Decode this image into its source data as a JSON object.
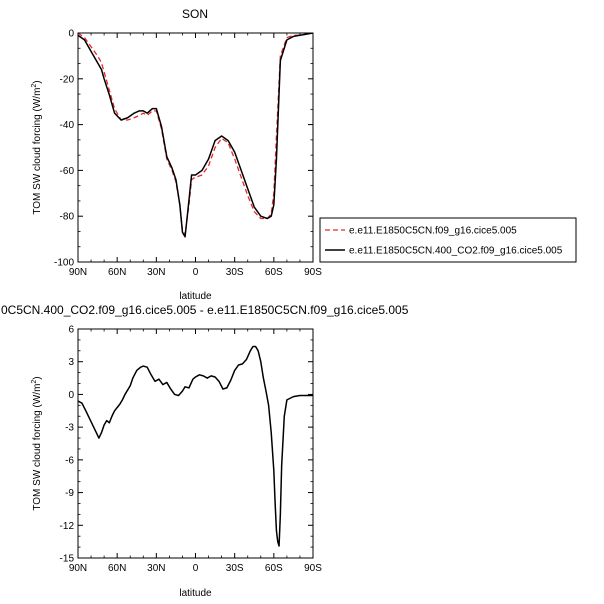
{
  "chart_data": [
    {
      "type": "line",
      "title": "SON",
      "xlabel": "latitude",
      "ylabel": "TOM SW cloud forcing (W/m",
      "ylabel_sup": "2",
      "ylabel_close": ")",
      "xlim": [
        90,
        -90
      ],
      "ylim": [
        -100,
        0
      ],
      "xticks": [
        90,
        60,
        30,
        0,
        -30,
        -60,
        -90
      ],
      "xtick_labels": [
        "90N",
        "60N",
        "30N",
        "0",
        "30S",
        "60S",
        "90S"
      ],
      "yticks": [
        -100,
        -80,
        -60,
        -40,
        -20,
        0
      ],
      "ytick_labels": [
        "-100",
        "-80",
        "-60",
        "-40",
        "-20",
        "0"
      ],
      "legend_position": "right",
      "series": [
        {
          "name": "e.e11.E1850C5CN.f09_g16.cice5.005",
          "color": "#e8262b",
          "dash": "dashed",
          "x": [
            90,
            85,
            80,
            75,
            72,
            70,
            66,
            62,
            57,
            52,
            47,
            43,
            40,
            37,
            33,
            30,
            26,
            22,
            18,
            15,
            12,
            10,
            8,
            5,
            3,
            0,
            -5,
            -10,
            -15,
            -20,
            -25,
            -30,
            -35,
            -40,
            -45,
            -50,
            -55,
            -58,
            -60,
            -62,
            -65,
            -70,
            -75,
            -80,
            -85,
            -90
          ],
          "y": [
            0,
            -2,
            -6,
            -10,
            -13,
            -17,
            -25,
            -33,
            -38,
            -38,
            -37,
            -36,
            -35,
            -36,
            -34,
            -34,
            -42,
            -55,
            -60,
            -65,
            -75,
            -86,
            -88,
            -75,
            -64,
            -63,
            -62,
            -58,
            -50,
            -46,
            -48,
            -55,
            -63,
            -71,
            -78,
            -81,
            -81,
            -79,
            -70,
            -45,
            -10,
            -2,
            -1,
            -1,
            -0.5,
            0
          ]
        },
        {
          "name": "e.e11.E1850C5CN.400_CO2.f09_g16.cice5.005",
          "color": "#000000",
          "dash": "solid",
          "x": [
            90,
            85,
            80,
            75,
            72,
            70,
            66,
            62,
            57,
            52,
            47,
            43,
            40,
            37,
            33,
            30,
            26,
            22,
            18,
            15,
            12,
            10,
            8,
            5,
            3,
            0,
            -5,
            -10,
            -15,
            -20,
            -25,
            -30,
            -35,
            -40,
            -45,
            -50,
            -55,
            -58,
            -60,
            -62,
            -65,
            -70,
            -75,
            -80,
            -85,
            -90
          ],
          "y": [
            -1,
            -3,
            -8,
            -13,
            -16,
            -20,
            -27,
            -35,
            -38,
            -37,
            -35,
            -34,
            -34,
            -35,
            -33,
            -33,
            -41,
            -54,
            -59,
            -64,
            -75,
            -87,
            -89,
            -73,
            -62,
            -62,
            -60,
            -55,
            -47,
            -45,
            -47,
            -52,
            -60,
            -68,
            -76,
            -80,
            -81,
            -80,
            -75,
            -55,
            -12,
            -3,
            -1.5,
            -1,
            -0.5,
            0
          ]
        }
      ]
    },
    {
      "type": "line",
      "title": "0C5CN.400_CO2.f09_g16.cice5.005 - e.e11.E1850C5CN.f09_g16.cice5.005",
      "xlabel": "latitude",
      "ylabel": "TOM SW cloud forcing (W/m",
      "ylabel_sup": "2",
      "ylabel_close": ")",
      "xlim": [
        90,
        -90
      ],
      "ylim": [
        -15,
        6
      ],
      "xticks": [
        90,
        60,
        30,
        0,
        -30,
        -60,
        -90
      ],
      "xtick_labels": [
        "90N",
        "60N",
        "30N",
        "0",
        "30S",
        "60S",
        "90S"
      ],
      "yticks": [
        -15,
        -12,
        -9,
        -6,
        -3,
        0,
        3,
        6
      ],
      "ytick_labels": [
        "-15",
        "-12",
        "-9",
        "-6",
        "-3",
        "0",
        "3",
        "6"
      ],
      "series": [
        {
          "color": "#000000",
          "dash": "solid",
          "x": [
            90,
            87,
            84,
            80,
            76,
            74,
            72,
            70,
            68,
            66,
            64,
            62,
            60,
            58,
            56,
            54,
            52,
            50,
            48,
            45,
            42,
            40,
            37,
            34,
            31,
            28,
            25,
            22,
            19,
            16,
            13,
            10,
            8,
            5,
            2,
            0,
            -3,
            -6,
            -9,
            -12,
            -15,
            -18,
            -21,
            -24,
            -27,
            -30,
            -33,
            -36,
            -39,
            -42,
            -44,
            -46,
            -48,
            -50,
            -52,
            -54,
            -56,
            -58,
            -60,
            -61,
            -62,
            -63,
            -64,
            -65,
            -66,
            -68,
            -70,
            -75,
            -80,
            -85,
            -90
          ],
          "y": [
            -0.6,
            -0.8,
            -1.5,
            -2.5,
            -3.5,
            -4.0,
            -3.5,
            -2.8,
            -2.4,
            -2.6,
            -2.0,
            -1.5,
            -1.2,
            -0.9,
            -0.5,
            0.0,
            0.4,
            0.8,
            1.5,
            2.2,
            2.5,
            2.6,
            2.5,
            1.8,
            1.2,
            1.4,
            0.9,
            1.1,
            0.5,
            0.0,
            -0.1,
            0.3,
            0.7,
            0.6,
            1.4,
            1.6,
            1.8,
            1.7,
            1.5,
            1.7,
            1.6,
            1.2,
            0.5,
            0.6,
            1.3,
            2.2,
            2.7,
            2.8,
            3.2,
            4.0,
            4.4,
            4.4,
            4.0,
            3.0,
            1.5,
            0.3,
            -1.0,
            -3.5,
            -7.0,
            -10.0,
            -12.5,
            -13.5,
            -13.9,
            -11.0,
            -6.5,
            -2.0,
            -0.5,
            -0.2,
            -0.1,
            -0.1,
            -0.1
          ]
        }
      ]
    }
  ]
}
